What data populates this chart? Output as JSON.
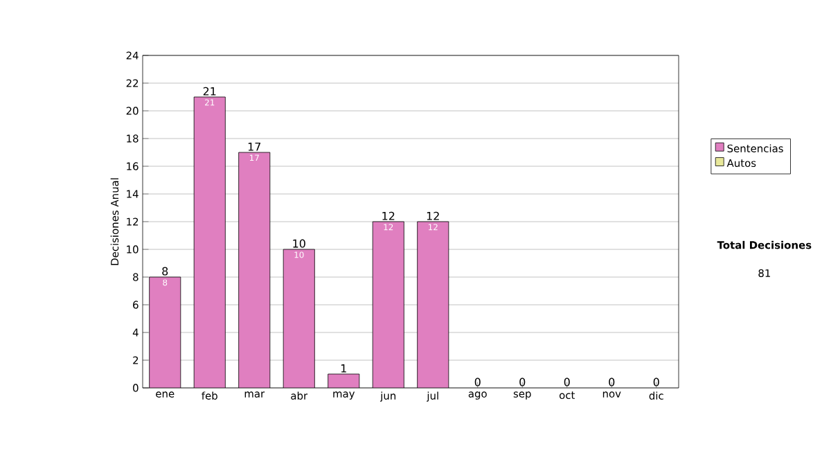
{
  "chart_data": {
    "type": "bar",
    "stacked": true,
    "ylabel": "Decisiones Anual",
    "categories": [
      "ene",
      "feb",
      "mar",
      "abr",
      "may",
      "jun",
      "jul",
      "ago",
      "sep",
      "oct",
      "nov",
      "dic"
    ],
    "series": [
      {
        "name": "Sentencias",
        "color": "#e07fc0",
        "values": [
          8,
          21,
          17,
          10,
          1,
          12,
          12,
          0,
          0,
          0,
          0,
          0
        ],
        "value_labels": [
          "8",
          "21",
          "17",
          "10",
          null,
          "12",
          "12",
          null,
          null,
          null,
          null,
          null
        ]
      },
      {
        "name": "Autos",
        "color": "#e8e89a",
        "values": [
          0,
          0,
          0,
          0,
          0,
          0,
          0,
          0,
          0,
          0,
          0,
          0
        ]
      }
    ],
    "totals": [
      "8",
      "21",
      "17",
      "10",
      "1",
      "12",
      "12",
      "0",
      "0",
      "0",
      "0",
      "0"
    ],
    "ylim": [
      0,
      24
    ],
    "yticks": [
      0,
      2,
      4,
      6,
      8,
      10,
      12,
      14,
      16,
      18,
      20,
      22,
      24
    ],
    "grid": "y",
    "legend": "right",
    "annotations": [
      "Total Decisiones",
      "81"
    ]
  }
}
